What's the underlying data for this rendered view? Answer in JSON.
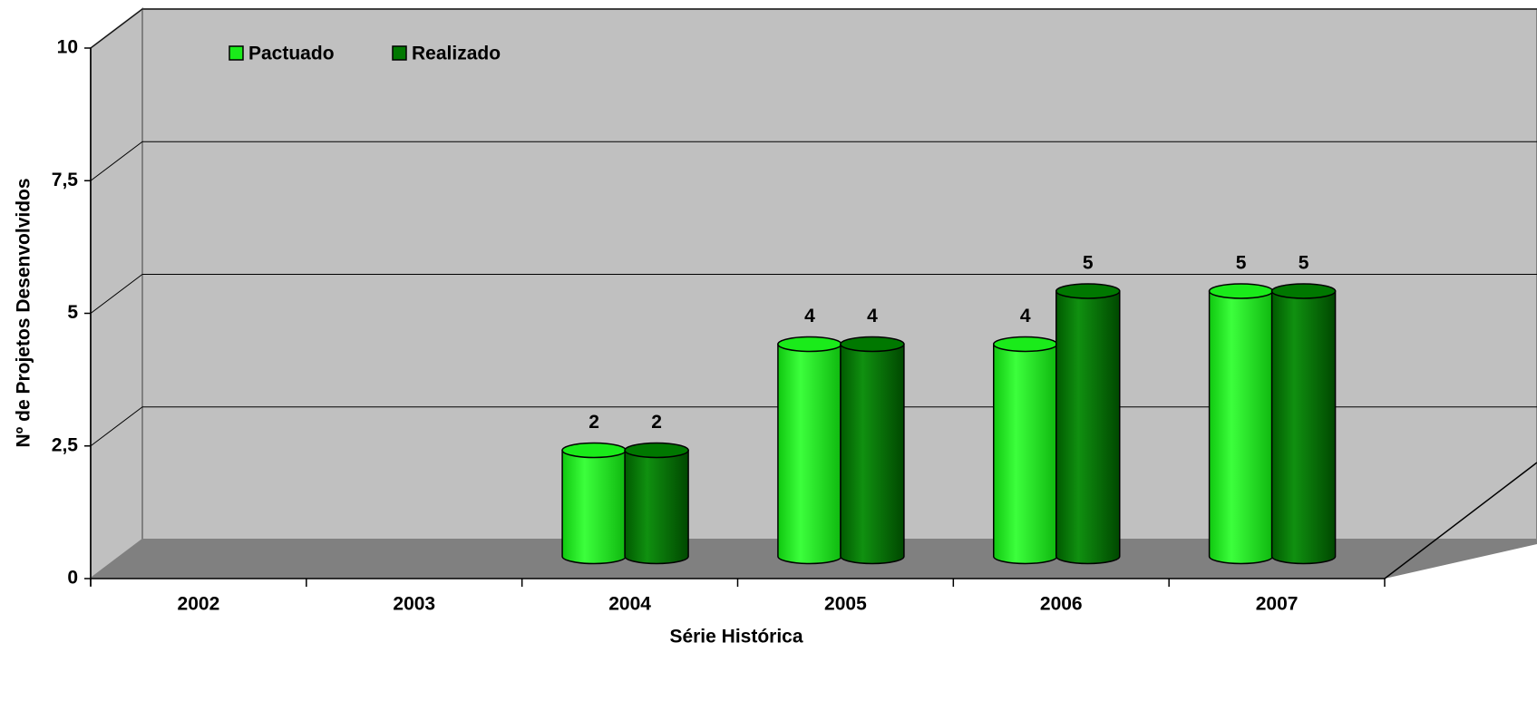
{
  "chart_data": {
    "type": "bar3d",
    "x_label": "Série Histórica",
    "y_label": "Nº de Projetos Desenvolvidos",
    "categories": [
      "2002",
      "2003",
      "2004",
      "2005",
      "2006",
      "2007"
    ],
    "series": [
      {
        "name": "Pactuado",
        "color": "#1aeb1a",
        "values": [
          null,
          null,
          2,
          4,
          4,
          5
        ]
      },
      {
        "name": "Realizado",
        "color": "#007800",
        "values": [
          null,
          null,
          2,
          4,
          5,
          5
        ]
      }
    ],
    "ylim": [
      0,
      10
    ],
    "yticks": [
      0,
      {
        "value": 2.5,
        "label": "2,5"
      },
      5,
      {
        "value": 7.5,
        "label": "7,5"
      },
      10
    ],
    "grid": true,
    "legend": "top-left"
  }
}
